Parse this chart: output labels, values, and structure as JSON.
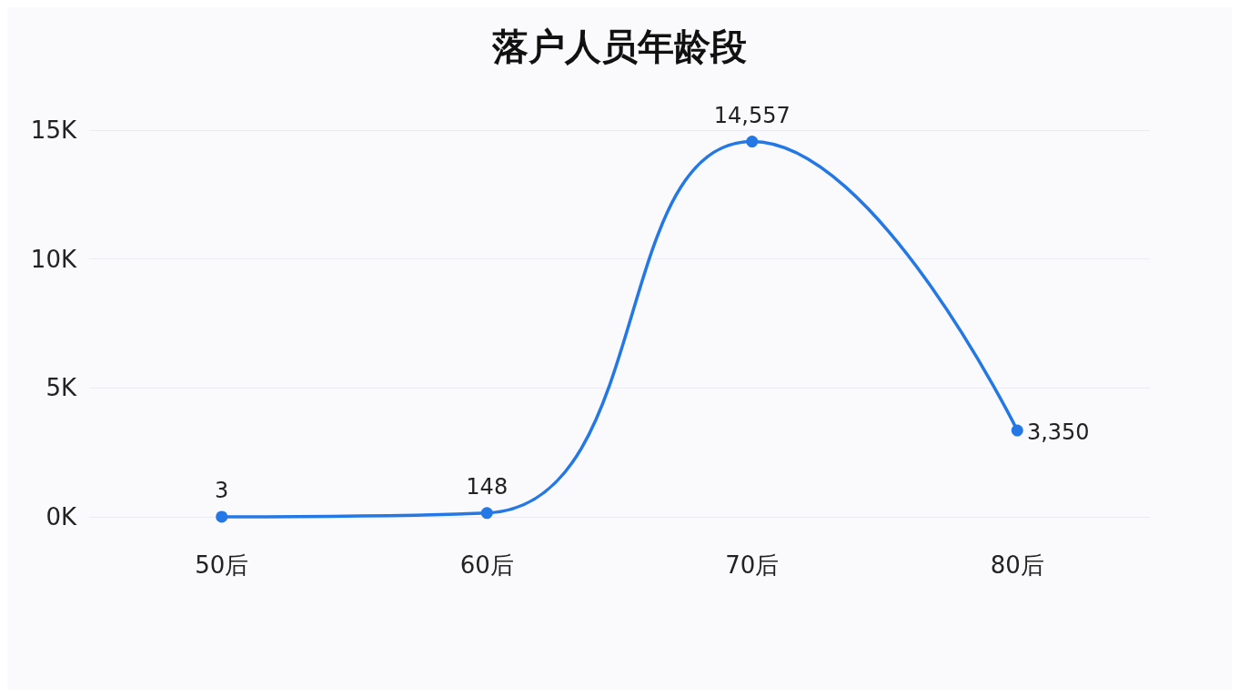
{
  "chart_data": {
    "type": "line",
    "title": "落户人员年龄段",
    "categories": [
      "50后",
      "60后",
      "70后",
      "80后"
    ],
    "series": [
      {
        "color": "#2478e6",
        "values": [
          3,
          148,
          14557,
          3350
        ],
        "value_labels": [
          "3",
          "148",
          "14,557",
          "3,350"
        ]
      }
    ],
    "ylim": [
      0,
      15000
    ],
    "yticks": [
      {
        "value": 0,
        "label": "0K"
      },
      {
        "value": 5000,
        "label": "5K"
      },
      {
        "value": 10000,
        "label": "10K"
      },
      {
        "value": 15000,
        "label": "15K"
      }
    ],
    "grid": "y",
    "marker": "circle",
    "line_style": "solid"
  }
}
